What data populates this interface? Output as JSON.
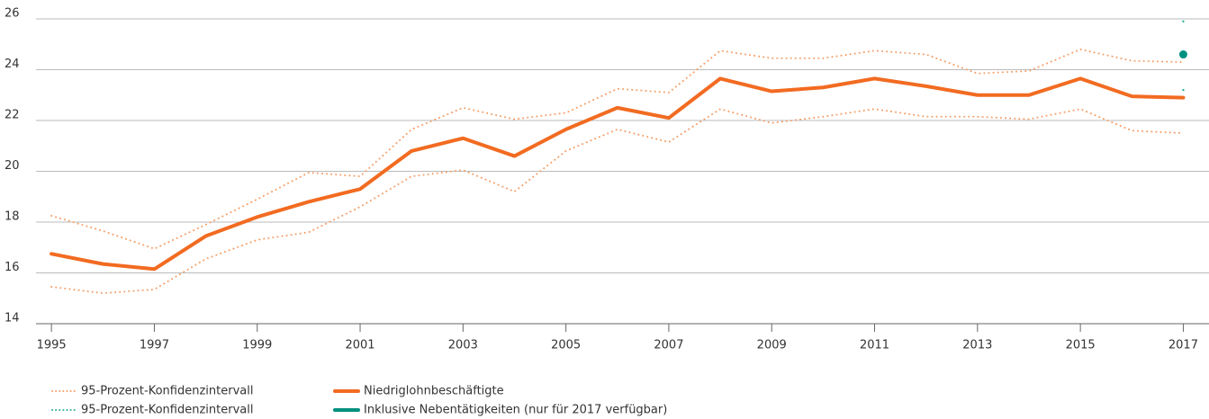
{
  "chart_data": {
    "type": "line",
    "x": [
      1995,
      1996,
      1997,
      1998,
      1999,
      2000,
      2001,
      2002,
      2003,
      2004,
      2005,
      2006,
      2007,
      2008,
      2009,
      2010,
      2011,
      2012,
      2013,
      2014,
      2015,
      2016,
      2017
    ],
    "xlim": [
      1994.7,
      2017.5
    ],
    "xticks": [
      1995,
      1997,
      1999,
      2001,
      2003,
      2005,
      2007,
      2009,
      2011,
      2013,
      2015,
      2017
    ],
    "ylim": [
      14,
      26
    ],
    "yticks": [
      14,
      16,
      18,
      20,
      22,
      24,
      26
    ],
    "grid": true,
    "legend": "bottom",
    "series": [
      {
        "name": "95-Prozent-Konfidenzintervall",
        "color": "#f4a06a",
        "style": "dotted",
        "upper": [
          18.25,
          17.65,
          16.95,
          17.9,
          18.9,
          19.95,
          19.8,
          21.65,
          22.5,
          22.05,
          22.3,
          23.25,
          23.1,
          24.75,
          24.45,
          24.45,
          24.75,
          24.6,
          23.85,
          23.95,
          24.8,
          24.35,
          24.3
        ],
        "lower": [
          15.45,
          15.2,
          15.35,
          16.55,
          17.3,
          17.6,
          18.6,
          19.8,
          20.05,
          19.2,
          20.8,
          21.65,
          21.15,
          22.45,
          21.9,
          22.15,
          22.45,
          22.15,
          22.15,
          22.05,
          22.45,
          21.6,
          21.5
        ]
      },
      {
        "name": "95-Prozent-Konfidenzintervall",
        "color": "#2fb09a",
        "style": "dotted",
        "upper": [
          null,
          null,
          null,
          null,
          null,
          null,
          null,
          null,
          null,
          null,
          null,
          null,
          null,
          null,
          null,
          null,
          null,
          null,
          null,
          null,
          null,
          null,
          25.9
        ],
        "lower": [
          null,
          null,
          null,
          null,
          null,
          null,
          null,
          null,
          null,
          null,
          null,
          null,
          null,
          null,
          null,
          null,
          null,
          null,
          null,
          null,
          null,
          null,
          23.2
        ]
      },
      {
        "name": "Niedriglohnbeschäftigte",
        "color": "#f26b21",
        "style": "solid",
        "values": [
          16.75,
          16.35,
          16.15,
          17.45,
          18.2,
          18.8,
          19.3,
          20.8,
          21.3,
          20.6,
          21.65,
          22.5,
          22.1,
          23.65,
          23.15,
          23.3,
          23.65,
          23.35,
          23.0,
          23.0,
          23.65,
          22.95,
          22.9
        ]
      },
      {
        "name": "Inklusive Nebentätigkeiten (nur für 2017 verfügbar)",
        "color": "#00907f",
        "style": "solid",
        "values": [
          null,
          null,
          null,
          null,
          null,
          null,
          null,
          null,
          null,
          null,
          null,
          null,
          null,
          null,
          null,
          null,
          null,
          null,
          null,
          null,
          null,
          null,
          24.6
        ]
      }
    ]
  }
}
